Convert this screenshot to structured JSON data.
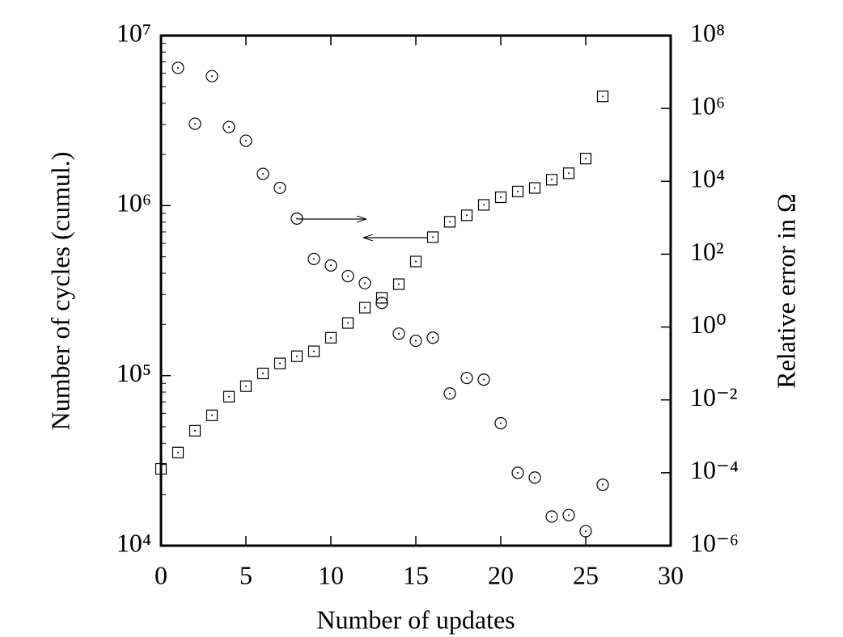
{
  "chart_data": {
    "type": "scatter",
    "xlabel": "Number of updates",
    "ylabel": "Number of cycles (cumul.)",
    "y2label": "Relative error in Ω",
    "xlim": [
      0,
      30
    ],
    "xticks": [
      0,
      5,
      10,
      15,
      20,
      25,
      30
    ],
    "ylim": [
      10000,
      10000000
    ],
    "yscale": "log",
    "yticks": [
      {
        "value": 10000,
        "label": "10⁴"
      },
      {
        "value": 100000,
        "label": "10⁵"
      },
      {
        "value": 1000000,
        "label": "10⁶"
      },
      {
        "value": 10000000,
        "label": "10⁷"
      }
    ],
    "y2lim": [
      1e-06,
      100000000
    ],
    "y2scale": "log",
    "y2ticks": [
      {
        "value": 1e-06,
        "label": "10⁻⁶"
      },
      {
        "value": 0.0001,
        "label": "10⁻⁴"
      },
      {
        "value": 0.01,
        "label": "10⁻²"
      },
      {
        "value": 1,
        "label": "10⁰"
      },
      {
        "value": 100,
        "label": "10²"
      },
      {
        "value": 10000,
        "label": "10⁴"
      },
      {
        "value": 1000000,
        "label": "10⁶"
      },
      {
        "value": 100000000,
        "label": "10⁸"
      }
    ],
    "grid": false,
    "series": [
      {
        "marker": "square",
        "color": "#000000",
        "axis": "y",
        "x": [
          0,
          1,
          2,
          3,
          4,
          5,
          6,
          7,
          8,
          9,
          10,
          11,
          12,
          13,
          14,
          15,
          16,
          17,
          18,
          19,
          20,
          21,
          22,
          23,
          24,
          25,
          26
        ],
        "values": [
          28300,
          35300,
          47400,
          58400,
          75200,
          86700,
          103000,
          118000,
          130000,
          139000,
          167000,
          204000,
          251000,
          287000,
          345000,
          469000,
          652000,
          803000,
          877000,
          1010000,
          1120000,
          1210000,
          1270000,
          1420000,
          1550000,
          1890000,
          4390000
        ]
      },
      {
        "marker": "circle",
        "color": "#000000",
        "axis": "y2",
        "x": [
          1,
          2,
          3,
          4,
          5,
          6,
          7,
          8,
          9,
          10,
          11,
          12,
          13,
          14,
          15,
          16,
          17,
          18,
          19,
          20,
          21,
          22,
          23,
          24,
          25,
          26
        ],
        "values": [
          13000000,
          380000,
          7700000,
          310000,
          130000,
          16000,
          6600,
          950,
          74,
          49,
          25,
          16,
          4.6,
          0.66,
          0.42,
          0.51,
          0.015,
          0.04,
          0.036,
          0.0023,
          0.0001,
          7.4e-05,
          6.3e-06,
          6.9e-06,
          2.5e-06,
          4.7e-05
        ]
      }
    ]
  }
}
